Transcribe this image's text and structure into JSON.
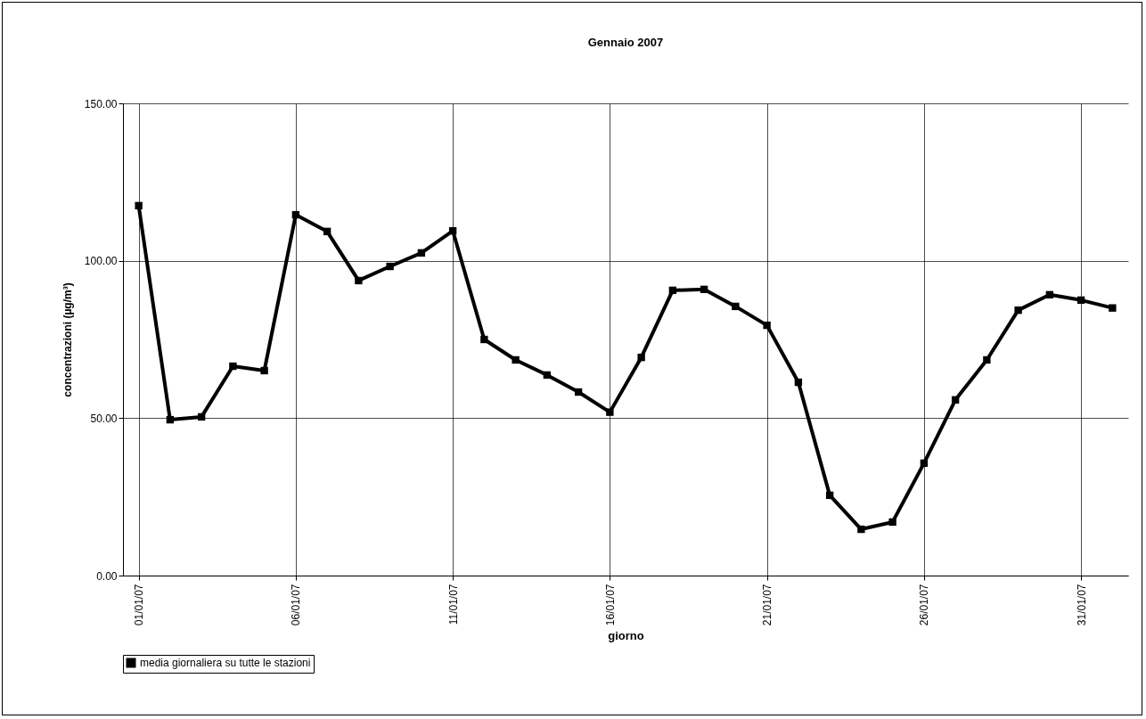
{
  "chart_data": {
    "type": "line",
    "title": "Gennaio 2007",
    "xlabel": "giorno",
    "ylabel": "concentrazioni (µg/m³)",
    "categories": [
      "01/01/07",
      null,
      null,
      null,
      null,
      "06/01/07",
      null,
      null,
      null,
      null,
      "11/01/07",
      null,
      null,
      null,
      null,
      "16/01/07",
      null,
      null,
      null,
      null,
      "21/01/07",
      null,
      null,
      null,
      null,
      "26/01/07",
      null,
      null,
      null,
      null,
      "31/01/07",
      null
    ],
    "series": [
      {
        "name": "media giornaliera su tutte le stazioni",
        "color": "#000000",
        "values": [
          117.5,
          49.5,
          50.4,
          66.5,
          65.1,
          114.6,
          109.3,
          93.7,
          98.2,
          102.5,
          109.5,
          75,
          68.5,
          63.7,
          58.3,
          51.9,
          69.3,
          90.6,
          90.9,
          85.5,
          79.5,
          61.4,
          25.5,
          14.7,
          17,
          35.7,
          55.8,
          68.5,
          84.3,
          89.2,
          87.5,
          85
        ]
      }
    ],
    "ylim": [
      0,
      150
    ],
    "yticks": [
      {
        "value": 0,
        "label": "0.00"
      },
      {
        "value": 50,
        "label": "50.00"
      },
      {
        "value": 100,
        "label": "100.00"
      },
      {
        "value": 150,
        "label": "150.00"
      }
    ],
    "grid": true,
    "legend": "bottom",
    "marker": "square",
    "line_style": "solid"
  }
}
